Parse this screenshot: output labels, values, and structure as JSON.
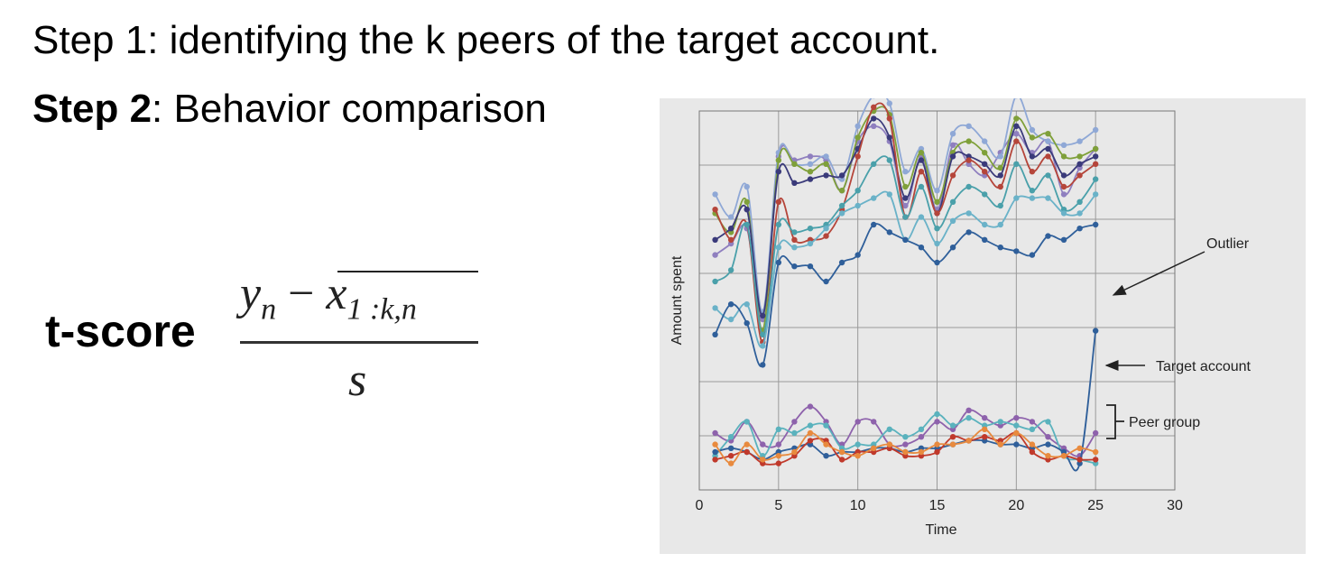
{
  "step1": "Step 1:  identifying the k peers of the target account.",
  "step2": {
    "bold": "Step 2",
    "rest": ": Behavior comparison"
  },
  "tscore_label": "t-score",
  "formula": {
    "numer_y": "y",
    "numer_y_sub": "n",
    "minus": "−",
    "numer_x": "x",
    "numer_x_sub": "1 :k,n",
    "denom": "s"
  },
  "chart_data": {
    "type": "line",
    "xlabel": "Time",
    "ylabel": "Amount spent",
    "xlim": [
      0,
      30
    ],
    "xticks": [
      "0",
      "5",
      "10",
      "15",
      "20",
      "25",
      "30"
    ],
    "ylim": [
      0,
      10
    ],
    "grid": true,
    "x": [
      1,
      2,
      3,
      4,
      5,
      6,
      7,
      8,
      9,
      10,
      11,
      12,
      13,
      14,
      15,
      16,
      17,
      18,
      19,
      20,
      21,
      22,
      23,
      24,
      25
    ],
    "annotations": {
      "outlier": "Outlier",
      "target": "Target account",
      "peer": "Peer group"
    },
    "series": [
      {
        "color": "#8f7fbf",
        "values": [
          6.2,
          6.5,
          6.9,
          4.5,
          8.8,
          8.7,
          8.8,
          8.7,
          7.9,
          9.2,
          9.6,
          9.2,
          7.5,
          8.8,
          7.4,
          9.1,
          8.6,
          8.3,
          8.9,
          9.4,
          8.9,
          9.2,
          7.8,
          8.5,
          9.0
        ]
      },
      {
        "color": "#8fa8d6",
        "values": [
          7.8,
          7.2,
          8.0,
          4.7,
          8.9,
          8.6,
          8.6,
          8.8,
          8.2,
          9.6,
          10.4,
          10.2,
          8.4,
          9.0,
          7.9,
          9.4,
          9.6,
          9.2,
          8.8,
          10.4,
          9.5,
          9.2,
          9.1,
          9.2,
          9.5
        ]
      },
      {
        "color": "#7fa03a",
        "values": [
          7.3,
          6.8,
          7.6,
          4.2,
          8.7,
          8.6,
          8.4,
          8.6,
          7.9,
          9.3,
          10.0,
          9.9,
          8.0,
          8.9,
          7.6,
          8.9,
          9.2,
          8.9,
          8.5,
          9.8,
          9.3,
          9.4,
          8.8,
          8.8,
          9.0
        ]
      },
      {
        "color": "#3a3a7a",
        "values": [
          6.6,
          6.9,
          7.4,
          4.6,
          8.4,
          8.1,
          8.2,
          8.3,
          8.3,
          9.0,
          9.8,
          9.3,
          7.7,
          8.7,
          7.3,
          8.8,
          8.8,
          8.6,
          8.3,
          9.6,
          8.8,
          9.0,
          8.3,
          8.6,
          8.8
        ]
      },
      {
        "color": "#b5453a",
        "values": [
          7.4,
          6.6,
          7.0,
          3.9,
          7.6,
          6.6,
          6.6,
          6.7,
          7.4,
          8.8,
          10.1,
          9.8,
          7.2,
          8.4,
          7.3,
          8.3,
          8.7,
          8.4,
          8.0,
          9.2,
          8.4,
          8.8,
          8.0,
          8.3,
          8.6
        ]
      },
      {
        "color": "#4aa0aa",
        "values": [
          5.5,
          5.8,
          7.0,
          4.1,
          7.0,
          6.8,
          6.9,
          7.0,
          7.5,
          7.9,
          8.6,
          8.7,
          7.2,
          8.0,
          6.9,
          7.6,
          8.0,
          7.8,
          7.5,
          8.6,
          7.9,
          8.3,
          7.4,
          7.6,
          8.2
        ]
      },
      {
        "color": "#6ab2c8",
        "values": [
          4.8,
          4.5,
          4.9,
          3.8,
          6.4,
          6.4,
          6.5,
          6.9,
          7.3,
          7.5,
          7.7,
          7.8,
          6.6,
          7.2,
          6.5,
          7.1,
          7.3,
          7.0,
          7.0,
          7.7,
          7.7,
          7.7,
          7.3,
          7.3,
          7.8
        ]
      },
      {
        "color": "#2f5f9a",
        "values": [
          4.1,
          4.9,
          4.4,
          3.3,
          6.0,
          5.9,
          5.9,
          5.5,
          6.0,
          6.2,
          7.0,
          6.8,
          6.6,
          6.4,
          6.0,
          6.4,
          6.8,
          6.6,
          6.4,
          6.3,
          6.2,
          6.7,
          6.6,
          6.9,
          7.0
        ]
      },
      {
        "color": "#8e62ac",
        "values": [
          1.5,
          1.3,
          1.8,
          1.2,
          1.2,
          1.8,
          2.2,
          1.8,
          1.2,
          1.8,
          1.8,
          1.2,
          1.2,
          1.4,
          1.8,
          1.6,
          2.1,
          1.9,
          1.7,
          1.9,
          1.8,
          1.4,
          1.1,
          0.9,
          1.5
        ]
      },
      {
        "color": "#5ab2bd",
        "values": [
          0.9,
          1.4,
          1.8,
          0.9,
          1.6,
          1.5,
          1.7,
          1.7,
          1.1,
          1.2,
          1.2,
          1.6,
          1.4,
          1.6,
          2.0,
          1.7,
          1.9,
          1.7,
          1.8,
          1.7,
          1.6,
          1.8,
          0.9,
          0.8,
          0.7
        ]
      },
      {
        "color": "#2f5f9a",
        "values": [
          1.0,
          1.1,
          1.0,
          0.8,
          1.0,
          1.1,
          1.2,
          0.9,
          1.0,
          1.0,
          1.1,
          1.1,
          1.0,
          1.1,
          1.1,
          1.2,
          1.3,
          1.3,
          1.2,
          1.2,
          1.1,
          1.2,
          1.0,
          0.7,
          4.2
        ]
      },
      {
        "color": "#c0392b",
        "values": [
          0.8,
          0.9,
          1.0,
          0.7,
          0.7,
          0.9,
          1.3,
          1.3,
          0.8,
          1.0,
          1.0,
          1.1,
          0.9,
          0.9,
          1.0,
          1.4,
          1.3,
          1.4,
          1.3,
          1.5,
          1.0,
          0.8,
          0.9,
          0.8,
          0.8
        ]
      },
      {
        "color": "#e88a3e",
        "values": [
          1.2,
          0.7,
          1.2,
          0.8,
          0.9,
          1.0,
          1.5,
          1.2,
          1.0,
          0.9,
          1.1,
          1.2,
          1.0,
          1.0,
          1.2,
          1.2,
          1.3,
          1.6,
          1.2,
          1.5,
          1.2,
          0.9,
          0.9,
          1.1,
          1.0
        ]
      }
    ]
  }
}
